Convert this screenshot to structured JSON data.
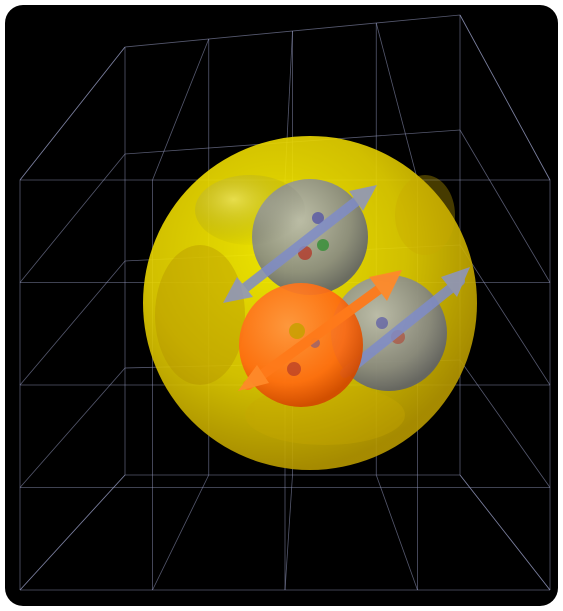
{
  "scene": {
    "background_color": "#000000",
    "grid_color": "#9aa0c8",
    "nucleus_sphere_color": "#f5e400",
    "neutron_color": "#8a8f9c",
    "proton_color": "#ff6a10",
    "neutron_spin_arrow_color": "#7f8cc8",
    "proton_spin_arrow_color": "#ff7a1a",
    "quark_colors": [
      "#3a8f3a",
      "#b33a2a",
      "#4a4aa8",
      "#c7a000"
    ],
    "particles": [
      {
        "kind": "neutron",
        "icon": "neutron-sphere"
      },
      {
        "kind": "neutron",
        "icon": "neutron-sphere"
      },
      {
        "kind": "proton",
        "icon": "proton-sphere"
      }
    ]
  }
}
